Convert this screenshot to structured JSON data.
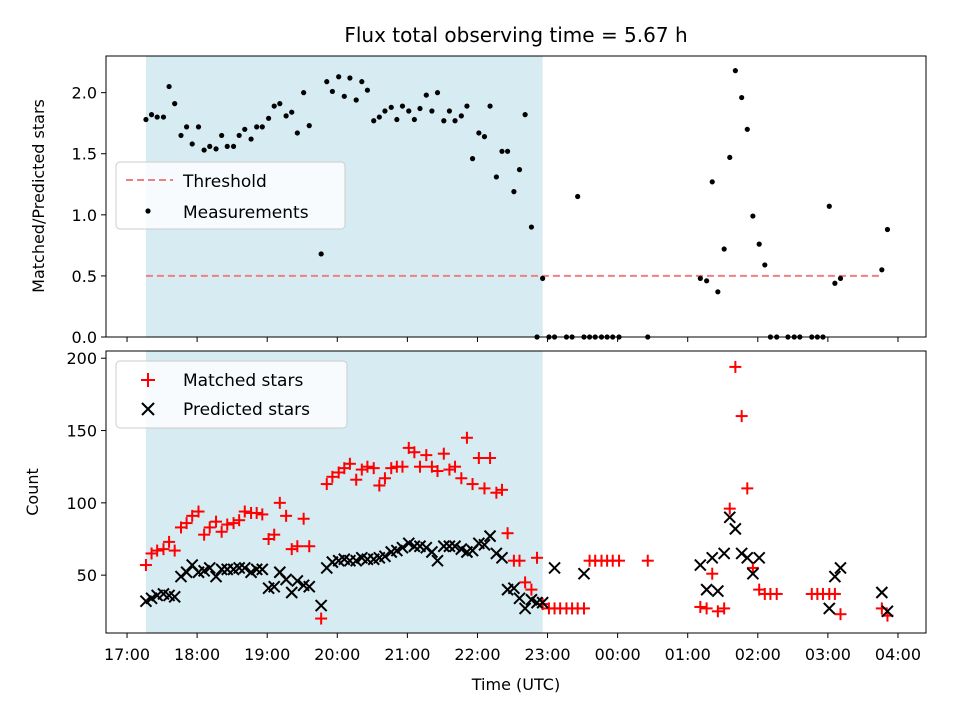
{
  "chart_data": [
    {
      "type": "scatter",
      "title": "Flux total observing time = 5.67 h",
      "ylabel": "Matched/Predicted stars",
      "xlabel": "",
      "ylim": [
        0,
        2.3
      ],
      "yticks": [
        0.0,
        0.5,
        1.0,
        1.5,
        2.0
      ],
      "ytick_labels": [
        "0.0",
        "0.5",
        "1.0",
        "1.5",
        "2.0"
      ],
      "x_hours": [
        16.7,
        28.4
      ],
      "shaded_span_hours": [
        17.27,
        22.93
      ],
      "shade_color": "#add8e6",
      "threshold": {
        "label": "Threshold",
        "value": 0.5,
        "x_from": 17.27,
        "x_to": 27.75,
        "color": "#f08080"
      },
      "legend": [
        "Threshold",
        "Measurements"
      ],
      "series": [
        {
          "name": "Measurements",
          "color": "#000000",
          "marker": "dot",
          "x": [
            17.27,
            17.35,
            17.43,
            17.52,
            17.6,
            17.68,
            17.77,
            17.85,
            17.93,
            18.02,
            18.1,
            18.18,
            18.27,
            18.35,
            18.43,
            18.52,
            18.6,
            18.68,
            18.77,
            18.85,
            18.93,
            19.02,
            19.1,
            19.18,
            19.27,
            19.35,
            19.43,
            19.52,
            19.6,
            19.77,
            19.85,
            19.93,
            20.02,
            20.1,
            20.18,
            20.27,
            20.35,
            20.43,
            20.52,
            20.6,
            20.68,
            20.77,
            20.85,
            20.93,
            21.02,
            21.1,
            21.18,
            21.27,
            21.35,
            21.43,
            21.52,
            21.6,
            21.68,
            21.77,
            21.85,
            21.93,
            22.02,
            22.1,
            22.18,
            22.27,
            22.35,
            22.43,
            22.52,
            22.6,
            22.68,
            22.77,
            22.85,
            22.93,
            23.02,
            23.1,
            23.27,
            23.35,
            23.43,
            23.52,
            23.6,
            23.68,
            23.77,
            23.85,
            23.93,
            24.02,
            24.43,
            25.18,
            25.27,
            25.35,
            25.43,
            25.52,
            25.6,
            25.68,
            25.77,
            25.85,
            25.93,
            26.02,
            26.1,
            26.18,
            26.27,
            26.43,
            26.52,
            26.6,
            26.77,
            26.85,
            26.93,
            27.02,
            27.1,
            27.18,
            27.77,
            27.85
          ],
          "y": [
            1.78,
            1.82,
            1.8,
            1.8,
            2.05,
            1.91,
            1.65,
            1.72,
            1.58,
            1.72,
            1.53,
            1.56,
            1.54,
            1.65,
            1.56,
            1.56,
            1.65,
            1.7,
            1.62,
            1.72,
            1.72,
            1.79,
            1.89,
            1.91,
            1.81,
            1.84,
            1.67,
            2.0,
            1.73,
            0.68,
            2.09,
            2.01,
            2.13,
            1.97,
            2.12,
            1.94,
            2.09,
            2.02,
            1.77,
            1.8,
            1.85,
            1.88,
            1.78,
            1.89,
            1.85,
            1.78,
            1.87,
            1.98,
            1.85,
            2.0,
            1.77,
            1.85,
            1.77,
            1.81,
            1.89,
            1.46,
            1.67,
            1.64,
            1.89,
            1.31,
            1.52,
            1.52,
            1.19,
            1.37,
            1.82,
            0.9,
            0.0,
            0.48,
            0.0,
            0.0,
            0.0,
            0.0,
            1.15,
            0.0,
            0.0,
            0.0,
            0.0,
            0.0,
            0.0,
            0.0,
            0.0,
            0.48,
            0.46,
            1.27,
            0.37,
            0.72,
            1.47,
            2.18,
            1.96,
            1.7,
            0.99,
            0.76,
            0.59,
            0.0,
            0.0,
            0.0,
            0.0,
            0.0,
            0.0,
            0.0,
            0.0,
            1.07,
            0.44,
            0.48,
            0.55,
            0.88
          ]
        }
      ]
    },
    {
      "type": "scatter",
      "title": "",
      "ylabel": "Count",
      "xlabel": "Time (UTC)",
      "ylim": [
        10,
        205
      ],
      "yticks": [
        50,
        100,
        150,
        200
      ],
      "ytick_labels": [
        "50",
        "100",
        "150",
        "200"
      ],
      "x_hours": [
        16.7,
        28.4
      ],
      "xticks": [
        17,
        18,
        19,
        20,
        21,
        22,
        23,
        24,
        25,
        26,
        27,
        28
      ],
      "xtick_labels": [
        "17:00",
        "18:00",
        "19:00",
        "20:00",
        "21:00",
        "22:00",
        "23:00",
        "00:00",
        "01:00",
        "02:00",
        "03:00",
        "04:00"
      ],
      "shaded_span_hours": [
        17.27,
        22.93
      ],
      "legend": [
        "Matched stars",
        "Predicted stars"
      ],
      "series": [
        {
          "name": "Matched stars",
          "color": "#ff0000",
          "marker": "plus",
          "x": [
            17.27,
            17.35,
            17.43,
            17.52,
            17.6,
            17.68,
            17.77,
            17.85,
            17.93,
            18.02,
            18.1,
            18.18,
            18.27,
            18.35,
            18.43,
            18.52,
            18.6,
            18.68,
            18.77,
            18.85,
            18.93,
            19.02,
            19.1,
            19.18,
            19.27,
            19.35,
            19.43,
            19.52,
            19.6,
            19.77,
            19.85,
            19.93,
            20.02,
            20.1,
            20.18,
            20.27,
            20.35,
            20.43,
            20.52,
            20.6,
            20.68,
            20.77,
            20.85,
            20.93,
            21.02,
            21.1,
            21.18,
            21.27,
            21.35,
            21.43,
            21.52,
            21.6,
            21.68,
            21.77,
            21.85,
            21.93,
            22.02,
            22.1,
            22.18,
            22.27,
            22.35,
            22.43,
            22.52,
            22.6,
            22.68,
            22.77,
            22.85,
            22.93,
            23.02,
            23.1,
            23.18,
            23.27,
            23.35,
            23.43,
            23.52,
            23.6,
            23.68,
            23.77,
            23.85,
            23.93,
            24.02,
            24.43,
            25.18,
            25.27,
            25.35,
            25.43,
            25.52,
            25.6,
            25.68,
            25.77,
            25.85,
            25.93,
            26.02,
            26.1,
            26.18,
            26.27,
            26.77,
            26.85,
            26.93,
            27.02,
            27.1,
            27.18,
            27.77,
            27.85
          ],
          "y": [
            57,
            65,
            67,
            68,
            73,
            67,
            83,
            86,
            91,
            94,
            78,
            83,
            87,
            80,
            85,
            86,
            88,
            94,
            93,
            93,
            92,
            75,
            78,
            100,
            91,
            68,
            70,
            89,
            70,
            20,
            113,
            118,
            121,
            124,
            127,
            116,
            123,
            125,
            124,
            112,
            117,
            124,
            125,
            125,
            138,
            135,
            125,
            133,
            125,
            122,
            134,
            123,
            125,
            117,
            145,
            113,
            131,
            110,
            131,
            107,
            109,
            79,
            60,
            60,
            45,
            40,
            62,
            30,
            27,
            27,
            27,
            27,
            27,
            27,
            27,
            60,
            60,
            60,
            60,
            60,
            60,
            60,
            28,
            27,
            51,
            25,
            27,
            96,
            194,
            160,
            110,
            55,
            40,
            37,
            37,
            37,
            37,
            37,
            37,
            37,
            37,
            23,
            27,
            22
          ]
        },
        {
          "name": "Predicted stars",
          "color": "#000000",
          "marker": "x",
          "x": [
            17.27,
            17.35,
            17.43,
            17.52,
            17.6,
            17.68,
            17.77,
            17.85,
            17.93,
            18.02,
            18.1,
            18.18,
            18.27,
            18.35,
            18.43,
            18.52,
            18.6,
            18.68,
            18.77,
            18.85,
            18.93,
            19.02,
            19.1,
            19.18,
            19.27,
            19.35,
            19.43,
            19.52,
            19.6,
            19.77,
            19.85,
            19.93,
            20.02,
            20.1,
            20.18,
            20.27,
            20.35,
            20.43,
            20.52,
            20.6,
            20.68,
            20.77,
            20.85,
            20.93,
            21.02,
            21.1,
            21.18,
            21.27,
            21.35,
            21.43,
            21.52,
            21.6,
            21.68,
            21.77,
            21.85,
            21.93,
            22.02,
            22.1,
            22.18,
            22.27,
            22.35,
            22.43,
            22.52,
            22.6,
            22.68,
            22.77,
            22.85,
            22.93,
            23.1,
            23.52,
            25.18,
            25.27,
            25.35,
            25.43,
            25.52,
            25.6,
            25.68,
            25.77,
            25.85,
            25.93,
            26.02,
            27.02,
            27.1,
            27.18,
            27.77,
            27.85
          ],
          "y": [
            32,
            34,
            36,
            37,
            36,
            35,
            49,
            52,
            57,
            52,
            53,
            55,
            49,
            54,
            54,
            54,
            55,
            55,
            52,
            54,
            54,
            41,
            42,
            52,
            47,
            38,
            46,
            43,
            42,
            29,
            55,
            59,
            60,
            61,
            60,
            60,
            62,
            61,
            61,
            62,
            63,
            66,
            67,
            69,
            72,
            70,
            70,
            69,
            66,
            60,
            70,
            70,
            70,
            68,
            66,
            67,
            72,
            71,
            77,
            65,
            62,
            40,
            41,
            34,
            27,
            33,
            31,
            31,
            55,
            51,
            57,
            40,
            62,
            39,
            65,
            90,
            82,
            65,
            62,
            51,
            62,
            27,
            49,
            55,
            38,
            25
          ]
        }
      ]
    }
  ]
}
